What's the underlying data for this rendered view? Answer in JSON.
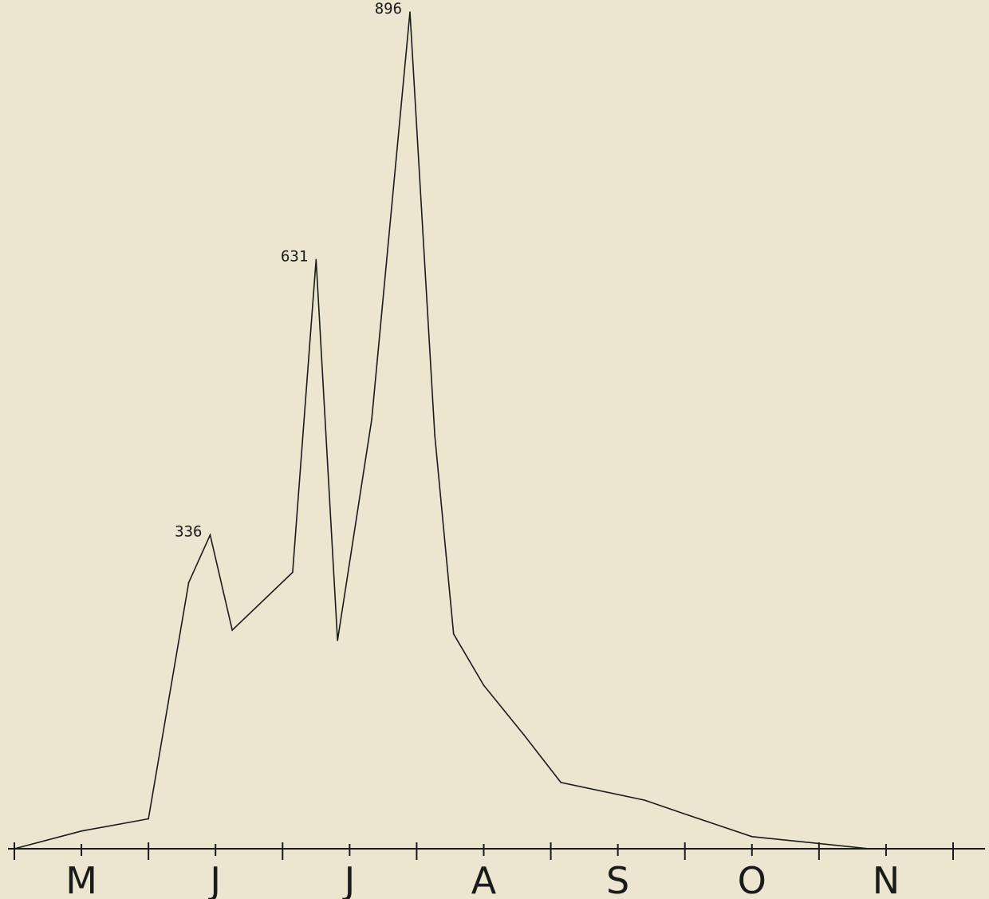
{
  "chart_data": {
    "type": "line",
    "title": "",
    "xlabel": "",
    "ylabel": "",
    "grid": false,
    "legend": "none",
    "month_labels": [
      "M",
      "J",
      "J",
      "A",
      "S",
      "O",
      "N"
    ],
    "x_range": [
      0,
      14
    ],
    "ylim": [
      0,
      896
    ],
    "series": [
      {
        "x": [
          0,
          1,
          2,
          2.6,
          2.92,
          3.25,
          4.15,
          4.5,
          4.82,
          5.33,
          5.9,
          6.27,
          6.55,
          7.0,
          7.6,
          8.15,
          9.4,
          10.05,
          11.0,
          12.75
        ],
        "y": [
          0,
          19,
          32,
          285,
          336,
          234,
          296,
          631,
          223,
          460,
          896,
          443,
          230,
          175,
          122,
          71,
          52,
          36,
          13,
          0
        ]
      }
    ],
    "annotations": [
      {
        "x": 2.92,
        "y": 336,
        "text": "336"
      },
      {
        "x": 4.5,
        "y": 631,
        "text": "631"
      },
      {
        "x": 5.9,
        "y": 896,
        "text": "896"
      }
    ],
    "colors": {
      "line": "#1a1a1a",
      "background": "#ece5cf"
    }
  }
}
